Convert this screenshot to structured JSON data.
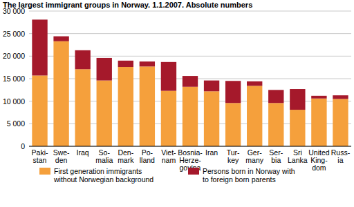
{
  "chart_data": {
    "type": "bar",
    "stacked": true,
    "grid": true,
    "legend": "bottom",
    "title": "The  largest immigrant groups in Norway. 1.1.2007. Absolute numbers",
    "categories": [
      "Paki-\nstan",
      "Swe-\nden",
      "Iraq",
      "So-\nmalia",
      "Den-\nmark",
      "Po-\nlland",
      "Viet-\nnam",
      "Bosnia-\nHerze-\ngovina",
      "Iran",
      "Tur-\nkey",
      "Ger-\nmany",
      "Ser-\nbia",
      "Sri\nLanka",
      "United\nKing-\ndom",
      "Russ-\nia"
    ],
    "series": [
      {
        "name": "First generation immigrants\nwithout Norwegian background",
        "color": "#f5a03c",
        "values": [
          15700,
          23300,
          17100,
          14600,
          17600,
          17700,
          12300,
          13200,
          12200,
          9600,
          13400,
          9600,
          8100,
          10600,
          10500
        ]
      },
      {
        "name": "Persons born in Norway with\nto foreign born parents",
        "color": "#a5192b",
        "values": [
          12400,
          1100,
          4200,
          5000,
          1400,
          1100,
          6400,
          2400,
          2400,
          4900,
          1000,
          2900,
          4600,
          600,
          800
        ]
      }
    ],
    "ylim": [
      0,
      30000
    ],
    "yticks": [
      0,
      {
        "value": 5000,
        "label": "5 000"
      },
      {
        "value": 10000,
        "label": "10 000"
      },
      {
        "value": 15000,
        "label": "15 000"
      },
      {
        "value": 20000,
        "label": "20 000"
      },
      {
        "value": 25000,
        "label": "25 000"
      },
      {
        "value": 30000,
        "label": "30 000"
      }
    ]
  }
}
